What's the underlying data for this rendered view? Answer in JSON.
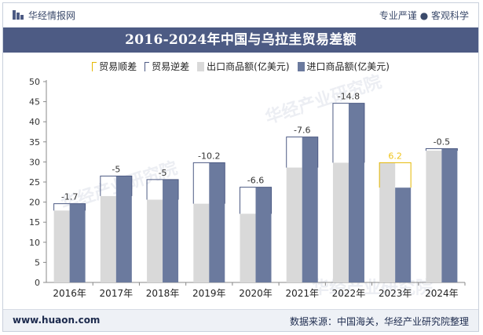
{
  "header": {
    "brand": "华经情报网",
    "slogan": "专业严谨 ● 客观科学"
  },
  "legend": [
    {
      "label": "贸易顺差",
      "kind": "surplus"
    },
    {
      "label": "贸易逆差",
      "kind": "deficit"
    },
    {
      "label": "出口商品额(亿美元)",
      "kind": "export"
    },
    {
      "label": "进口商品额(亿美元)",
      "kind": "import"
    }
  ],
  "watermark": "华经产业研究院",
  "footer": {
    "site": "www.huaon.com",
    "source": "数据来源：中国海关，华经产业研究院整理"
  },
  "colors": {
    "export": "#d9d9d9",
    "import": "#6b7a9e",
    "deficit_border": "#4d5b84",
    "surplus_border": "#e5b800",
    "surplus_label": "#f0c419",
    "deficit_label": "#333333",
    "header_bg": "#4d5b84"
  },
  "chart_data": {
    "type": "bar",
    "title": "2016-2024年中国与乌拉圭贸易差额",
    "categories": [
      "2016年",
      "2017年",
      "2018年",
      "2019年",
      "2020年",
      "2021年",
      "2022年",
      "2023年",
      "2024年"
    ],
    "series": [
      {
        "name": "出口商品额(亿美元)",
        "values": [
          17.9,
          21.5,
          20.6,
          19.6,
          17.1,
          28.6,
          29.8,
          29.8,
          32.8
        ]
      },
      {
        "name": "进口商品额(亿美元)",
        "values": [
          19.6,
          26.5,
          25.6,
          29.8,
          23.7,
          36.2,
          44.6,
          23.6,
          33.3
        ]
      }
    ],
    "balance": [
      {
        "label": "-1.7",
        "type": "deficit"
      },
      {
        "label": "-5",
        "type": "deficit"
      },
      {
        "label": "-5",
        "type": "deficit"
      },
      {
        "label": "-10.2",
        "type": "deficit"
      },
      {
        "label": "-6.6",
        "type": "deficit"
      },
      {
        "label": "-7.6",
        "type": "deficit"
      },
      {
        "label": "-14.8",
        "type": "deficit"
      },
      {
        "label": "6.2",
        "type": "surplus"
      },
      {
        "label": "-0.5",
        "type": "deficit"
      }
    ],
    "yticks": [
      0,
      5,
      10,
      15,
      20,
      25,
      30,
      35,
      40,
      45,
      50
    ],
    "ylim": [
      0,
      50
    ],
    "grid": false,
    "legend_position": "top"
  }
}
